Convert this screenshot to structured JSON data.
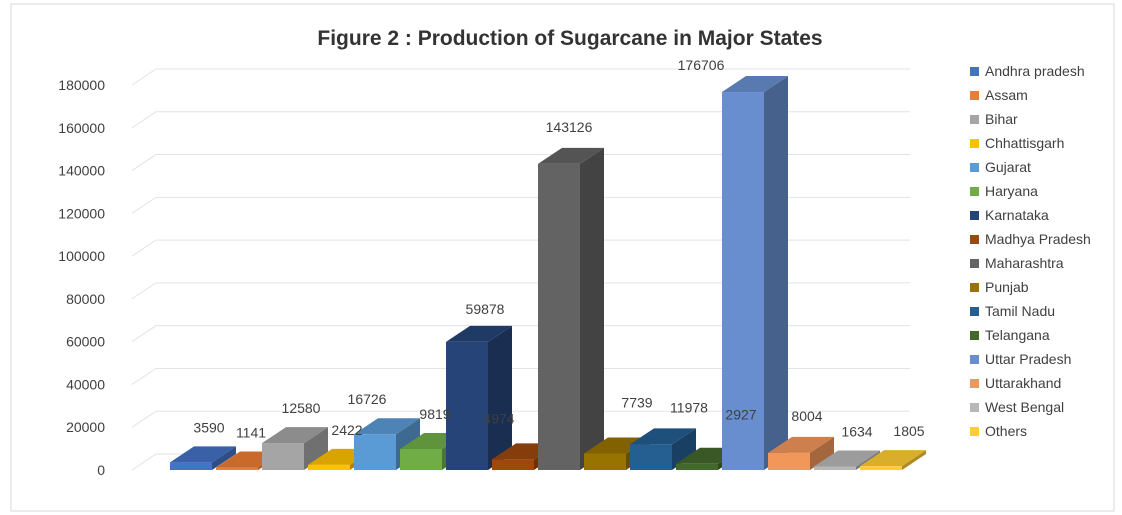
{
  "chart_data": {
    "type": "bar",
    "title": "Figure 2 : Production of Sugarcane in Major States",
    "xlabel": "",
    "ylabel": "",
    "ylim": [
      0,
      180000
    ],
    "yticks": [
      0,
      20000,
      40000,
      60000,
      80000,
      100000,
      120000,
      140000,
      160000,
      180000
    ],
    "grid": true,
    "legend": "right",
    "categories": [
      "Andhra pradesh",
      "Assam",
      "Bihar",
      "Chhattisgarh",
      "Gujarat",
      "Haryana",
      "Karnataka",
      "Madhya Pradesh",
      "Maharashtra",
      "Punjab",
      "Tamil Nadu",
      "Telangana",
      "Uttar Pradesh",
      "Uttarakhand",
      "West Bengal",
      "Others"
    ],
    "values": [
      3590,
      1141,
      12580,
      2422,
      16726,
      9819,
      59878,
      4974,
      143126,
      7739,
      11978,
      2927,
      176706,
      8004,
      1634,
      1805
    ],
    "data_labels": [
      "3590",
      "1141",
      "12580",
      "2422",
      "16726",
      "9819",
      "59878",
      "4974",
      "143126",
      "7739",
      "11978",
      "2927",
      "176706",
      "8004",
      "1634",
      "1805"
    ],
    "colors": [
      "#4472c4",
      "#ed7d31",
      "#a5a5a5",
      "#ffc000",
      "#5b9bd5",
      "#70ad47",
      "#264478",
      "#9e480e",
      "#636363",
      "#997300",
      "#255e91",
      "#43682b",
      "#698ed0",
      "#f1975a",
      "#b7b7b7",
      "#ffcd33"
    ]
  }
}
